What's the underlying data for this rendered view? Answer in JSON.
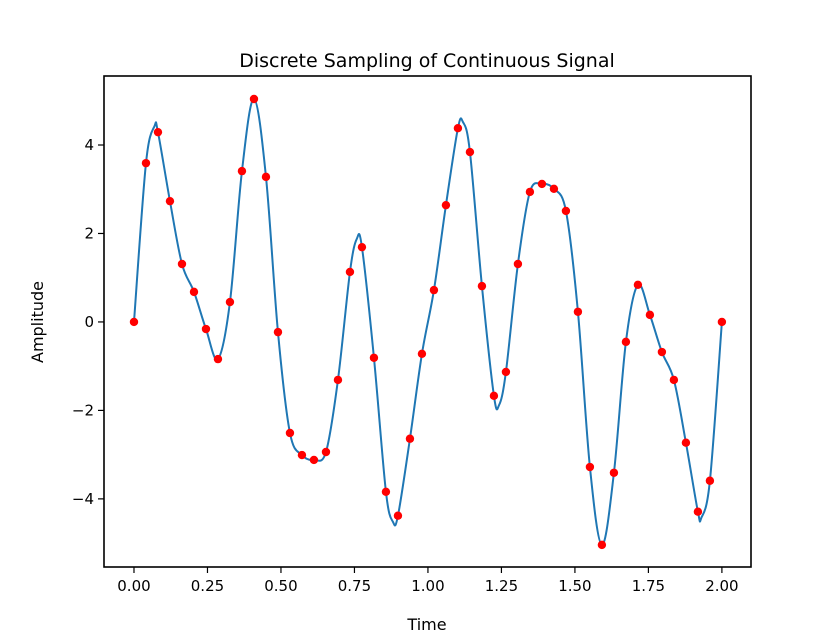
{
  "chart_data": {
    "type": "line",
    "title": "Discrete Sampling of Continuous Signal",
    "x_label": "Time",
    "y_label": "Amplitude",
    "xlim": [
      -0.102,
      2.099
    ],
    "ylim": [
      -5.54,
      5.56
    ],
    "xticks": [
      {
        "value": 0,
        "label": "0.00"
      },
      {
        "value": 0.25,
        "label": "0.25"
      },
      {
        "value": 0.5,
        "label": "0.50"
      },
      {
        "value": 0.75,
        "label": "0.75"
      },
      {
        "value": 1,
        "label": "1.00"
      },
      {
        "value": 1.25,
        "label": "1.25"
      },
      {
        "value": 1.5,
        "label": "1.50"
      },
      {
        "value": 1.75,
        "label": "1.75"
      },
      {
        "value": 2,
        "label": "2.00"
      }
    ],
    "yticks": [
      {
        "value": -4,
        "label": "−4"
      },
      {
        "value": -2,
        "label": "−2"
      },
      0,
      2,
      4
    ],
    "grid": false,
    "series": [
      {
        "type": "line",
        "color": "#1f77b4",
        "x": [
          0,
          0.0408,
          0.07,
          0.0816,
          0.1224,
          0.1633,
          0.2041,
          0.2449,
          0.2857,
          0.3265,
          0.3673,
          0.4082,
          0.449,
          0.4898,
          0.5306,
          0.5714,
          0.6122,
          0.6531,
          0.6939,
          0.7347,
          0.758,
          0.7755,
          0.8163,
          0.8571,
          0.881,
          0.898,
          0.9388,
          0.9796,
          1.0204,
          1.0612,
          1.102,
          1.119,
          1.1429,
          1.1837,
          1.2245,
          1.242,
          1.2653,
          1.3061,
          1.3469,
          1.3878,
          1.4286,
          1.4694,
          1.5102,
          1.551,
          1.5918,
          1.6327,
          1.6735,
          1.7143,
          1.7551,
          1.7959,
          1.8367,
          1.8776,
          1.9184,
          1.93,
          1.9592,
          2.0
        ],
        "values": [
          0,
          3.59,
          4.43,
          4.29,
          2.73,
          1.31,
          0.68,
          -0.16,
          -0.84,
          0.45,
          3.41,
          5.04,
          3.28,
          -0.23,
          -2.51,
          -3.01,
          -3.12,
          -2.94,
          -1.31,
          1.13,
          1.88,
          1.69,
          -0.81,
          -3.84,
          -4.52,
          -4.38,
          -2.64,
          -0.72,
          0.72,
          2.64,
          4.38,
          4.52,
          3.84,
          0.81,
          -1.67,
          -1.88,
          -1.13,
          1.31,
          2.94,
          3.12,
          3.01,
          2.51,
          0.23,
          -3.28,
          -5.04,
          -3.41,
          -0.45,
          0.84,
          0.16,
          -0.68,
          -1.31,
          -2.73,
          -4.29,
          -4.43,
          -3.59,
          0
        ]
      },
      {
        "type": "scatter",
        "color": "#ff0000",
        "x": [
          0,
          0.0408,
          0.0816,
          0.1224,
          0.1633,
          0.2041,
          0.2449,
          0.2857,
          0.3265,
          0.3673,
          0.4082,
          0.449,
          0.4898,
          0.5306,
          0.5714,
          0.6122,
          0.6531,
          0.6939,
          0.7347,
          0.7755,
          0.8163,
          0.8571,
          0.898,
          0.9388,
          0.9796,
          1.0204,
          1.0612,
          1.102,
          1.1429,
          1.1837,
          1.2245,
          1.2653,
          1.3061,
          1.3469,
          1.3878,
          1.4286,
          1.4694,
          1.5102,
          1.551,
          1.5918,
          1.6327,
          1.6735,
          1.7143,
          1.7551,
          1.7959,
          1.8367,
          1.8776,
          1.9184,
          1.9592,
          2.0
        ],
        "values": [
          0,
          3.59,
          4.29,
          2.73,
          1.31,
          0.68,
          -0.16,
          -0.84,
          0.45,
          3.41,
          5.04,
          3.28,
          -0.23,
          -2.51,
          -3.01,
          -3.12,
          -2.94,
          -1.31,
          1.13,
          1.69,
          -0.81,
          -3.84,
          -4.38,
          -2.64,
          -0.72,
          0.72,
          2.64,
          4.38,
          3.84,
          0.81,
          -1.67,
          -1.13,
          1.31,
          2.94,
          3.12,
          3.01,
          2.51,
          0.23,
          -3.28,
          -5.04,
          -3.41,
          -0.45,
          0.84,
          0.16,
          -0.68,
          -1.31,
          -2.73,
          -4.29,
          -3.59,
          0
        ]
      }
    ]
  }
}
